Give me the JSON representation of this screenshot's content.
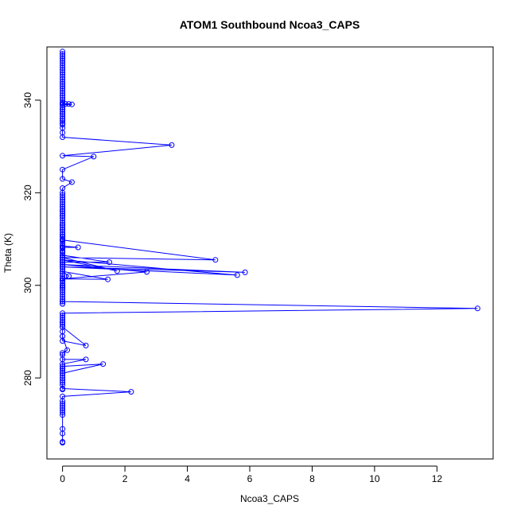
{
  "chart_data": {
    "type": "line",
    "title": "ATOM1 Southbound Ncoa3_CAPS",
    "xlabel": "Ncoa3_CAPS",
    "ylabel": "Theta (K)",
    "xlim": [
      -0.5,
      13.8
    ],
    "ylim": [
      262.5,
      351.5
    ],
    "x_ticks": [
      0,
      2,
      4,
      6,
      8,
      10,
      12
    ],
    "y_ticks": [
      280,
      300,
      320,
      340
    ],
    "x_tick_labels": [
      "0",
      "2",
      "4",
      "6",
      "8",
      "10",
      "12"
    ],
    "y_tick_labels": [
      "280",
      "300",
      "320",
      "340"
    ],
    "grid": false,
    "legend": "none",
    "colors": {
      "series": "#0000ff",
      "frame": "#000000"
    },
    "series": [
      {
        "marker": "open-circle",
        "x": [
          0,
          0,
          0,
          0,
          0,
          0,
          0,
          0,
          0,
          0,
          0,
          0,
          0,
          0,
          0,
          0,
          0,
          0,
          0,
          0,
          0,
          0,
          0,
          0,
          0,
          0,
          0,
          0,
          0,
          0,
          0,
          0,
          0,
          0.1,
          0.2,
          0.3,
          0,
          0,
          0,
          0,
          0,
          0,
          0,
          0,
          0,
          3.5,
          0,
          1.0,
          0,
          0,
          0.3,
          0,
          0,
          0,
          0,
          0,
          0,
          0,
          0,
          0,
          0,
          0,
          0,
          0,
          0,
          0,
          0,
          0,
          0,
          0,
          0,
          0,
          0,
          0,
          0,
          0,
          0,
          0,
          0,
          0,
          0,
          0,
          0,
          0,
          0,
          0,
          0,
          0,
          0,
          0,
          0,
          0,
          0,
          0,
          0,
          0,
          0,
          0,
          0,
          0,
          0,
          0,
          0,
          0,
          0,
          0,
          0,
          0,
          0,
          0,
          4.9,
          0,
          0,
          0,
          0.5,
          0,
          0,
          1.5,
          0,
          0,
          1.75,
          0,
          5.6,
          0,
          5.85,
          0,
          2.7,
          0,
          1.45,
          0,
          0.2,
          0,
          0,
          0,
          0,
          0,
          0,
          13.3,
          0,
          0,
          0,
          0,
          0,
          0,
          0,
          0,
          0,
          0,
          0.75,
          0,
          0,
          0,
          0.15,
          0,
          0,
          0,
          0.75,
          0,
          0,
          0,
          1.3,
          0,
          0,
          0,
          0,
          0,
          0,
          0,
          0,
          0,
          0,
          0,
          2.2,
          0,
          0,
          0,
          0,
          0,
          0,
          0,
          0,
          0,
          0,
          0,
          0
        ],
        "y": [
          350.5,
          350,
          349.5,
          349,
          348.5,
          348,
          347.5,
          347,
          346.5,
          346,
          345.5,
          345,
          344.5,
          344,
          343.5,
          343,
          342.5,
          342,
          341.5,
          341,
          340.5,
          340,
          339.5,
          339,
          338.5,
          338,
          337.5,
          337,
          336.5,
          336,
          335.5,
          335,
          339.3,
          339.2,
          339.2,
          339.1,
          339,
          338,
          337,
          336,
          335,
          334.7,
          334,
          333,
          332,
          330.3,
          328,
          327.8,
          325,
          323,
          322.3,
          321,
          320,
          319.5,
          319,
          318.5,
          318,
          317.5,
          317,
          316.5,
          316,
          315.5,
          315,
          314.5,
          314,
          313.5,
          313,
          312.5,
          312,
          311.5,
          311,
          310.5,
          310,
          309.5,
          309,
          308.5,
          308,
          307.5,
          307,
          306.5,
          306,
          305.5,
          305,
          304.5,
          304,
          303.5,
          303,
          302.5,
          302,
          301.5,
          301,
          300.5,
          300,
          299.5,
          299,
          298.5,
          298,
          297.5,
          297,
          296.5,
          296,
          317,
          316,
          315,
          313,
          312,
          311,
          310.5,
          307.3,
          306,
          305.5,
          309.8,
          309.8,
          308.5,
          308.2,
          308.2,
          306.5,
          305,
          305,
          306,
          303.1,
          305.5,
          302.2,
          304,
          302.8,
          304.5,
          302.9,
          301.4,
          301.3,
          303,
          302,
          301,
          300,
          299.5,
          299.9,
          296,
          296.5,
          295,
          294,
          293.5,
          293,
          292.5,
          292,
          291.5,
          291,
          292,
          289,
          288,
          287,
          291,
          290,
          289,
          286,
          285.4,
          285,
          283,
          284,
          284,
          282,
          281,
          283,
          282.5,
          282,
          281.5,
          281,
          280.5,
          280,
          279.5,
          279,
          278.5,
          277.5,
          277.7,
          277,
          276,
          275,
          274.5,
          274,
          273.5,
          273,
          272.5,
          272,
          269,
          268,
          266.2,
          266
        ]
      }
    ]
  }
}
